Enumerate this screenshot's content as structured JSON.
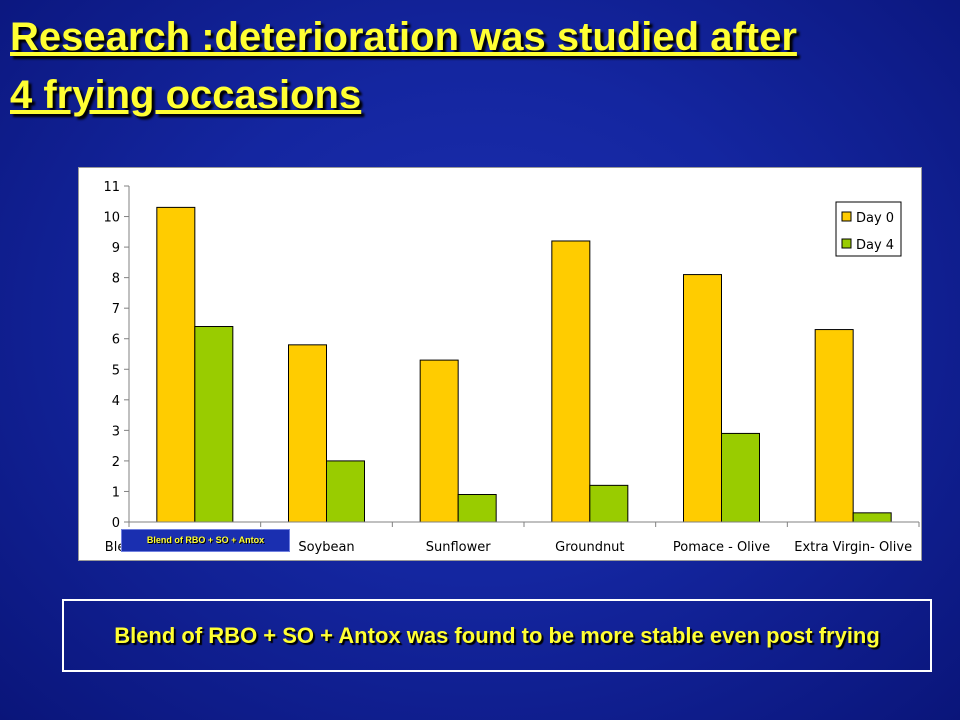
{
  "slide": {
    "title_line1": "Research :deterioration was studied after",
    "title_line2": "4 frying occasions",
    "overlay_label": "Blend of RBO + SO + Antox",
    "conclusion": "Blend of RBO + SO + Antox was found to be more stable even post frying"
  },
  "colors": {
    "background": "#1426a0",
    "title": "#ffff33",
    "day0": "#ffcc00",
    "day4": "#99cc00"
  },
  "chart_data": {
    "type": "bar",
    "title": "",
    "xlabel": "",
    "ylabel": "",
    "categories": [
      "Blend of RBO + SO + Antox",
      "Soybean",
      "Sunflower",
      "Groundnut",
      "Pomace - Olive",
      "Extra Virgin- Olive"
    ],
    "series": [
      {
        "name": "Day 0",
        "values": [
          10.3,
          5.8,
          5.3,
          9.2,
          8.1,
          6.3
        ]
      },
      {
        "name": "Day 4",
        "values": [
          6.4,
          2.0,
          0.9,
          1.2,
          2.9,
          0.3
        ]
      }
    ],
    "ylim": [
      0,
      11
    ],
    "yticks": [
      0,
      1,
      2,
      3,
      4,
      5,
      6,
      7,
      8,
      9,
      10,
      11
    ],
    "grid": false,
    "legend_position": "top-right"
  }
}
